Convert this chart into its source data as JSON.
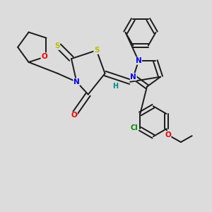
{
  "bg_color": "#dcdcdc",
  "bond_color": "#1a1a1a",
  "atom_colors": {
    "N": "#0000ee",
    "O": "#ee0000",
    "S": "#bbbb00",
    "Cl": "#008800",
    "H": "#008888",
    "C": "#1a1a1a"
  },
  "lw": 1.4,
  "dbo": 0.011
}
